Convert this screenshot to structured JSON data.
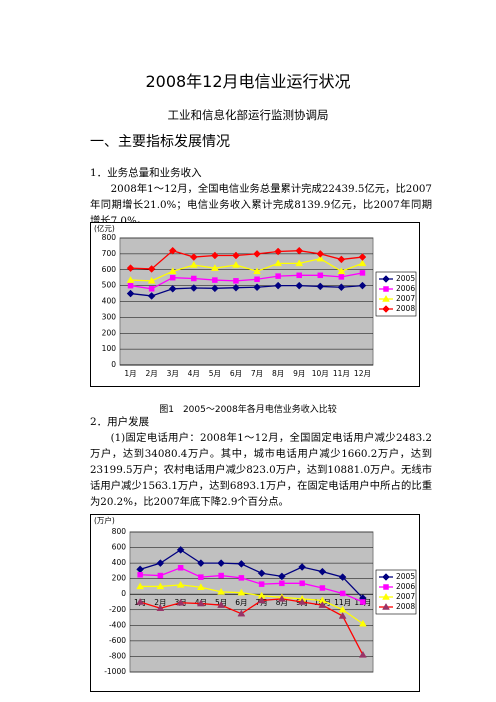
{
  "document": {
    "title": "2008年12月电信业运行状况",
    "subtitle": "工业和信息化部运行监测协调局",
    "heading": "一、主要指标发展情况",
    "section1": "1．业务总量和业务收入",
    "paragraph1": "2008年1～12月，全国电信业务总量累计完成22439.5亿元，比2007年同期增长21.0%；电信业务收入累计完成8139.9亿元，比2007年同期增长7.0%。",
    "caption1": "图1　2005～2008年各月电信业务收入比较",
    "section2": "2．用户发展",
    "paragraph2": "(1)固定电话用户：2008年1～12月，全国固定电话用户减少2483.2万户，达到34080.4万户。其中，城市电话用户减少1660.2万户，达到23199.5万户；农村电话用户减少823.0万户，达到10881.0万户。无线市话用户减少1563.1万户，达到6893.1万户，在固定电话用户中所占的比重为20.2%，比2007年底下降2.9个百分点。"
  },
  "chart_data": [
    {
      "type": "line",
      "unit": "(亿元)",
      "categories": [
        "1月",
        "2月",
        "3月",
        "4月",
        "5月",
        "6月",
        "7月",
        "8月",
        "9月",
        "10月",
        "11月",
        "12月"
      ],
      "ylim": [
        0,
        800
      ],
      "yticks": [
        0,
        100,
        200,
        300,
        400,
        500,
        600,
        700,
        800
      ],
      "grid": true,
      "legend": "right",
      "series": [
        {
          "name": "2005",
          "color": "#000080",
          "marker": "diamond",
          "values": [
            450,
            435,
            480,
            485,
            483,
            487,
            490,
            500,
            500,
            495,
            490,
            500
          ]
        },
        {
          "name": "2006",
          "color": "#ff00ff",
          "marker": "square",
          "values": [
            500,
            480,
            550,
            545,
            535,
            530,
            540,
            560,
            565,
            565,
            555,
            580
          ]
        },
        {
          "name": "2007",
          "color": "#ffff00",
          "marker": "triangle",
          "values": [
            535,
            530,
            590,
            630,
            610,
            630,
            590,
            640,
            640,
            670,
            590,
            640
          ]
        },
        {
          "name": "2008",
          "color": "#ff0000",
          "marker": "diamond",
          "values": [
            610,
            605,
            720,
            680,
            690,
            690,
            700,
            715,
            720,
            700,
            665,
            680
          ]
        }
      ]
    },
    {
      "type": "line",
      "unit": "(万户)",
      "categories": [
        "1月",
        "2月",
        "3月",
        "4月",
        "5月",
        "6月",
        "7月",
        "8月",
        "9月",
        "10月",
        "11月",
        "12月"
      ],
      "ylim": [
        -1000,
        800
      ],
      "yticks": [
        -1000,
        -800,
        -600,
        -400,
        -200,
        0,
        200,
        400,
        600,
        800
      ],
      "grid": true,
      "legend": "right",
      "series": [
        {
          "name": "2005",
          "color": "#000080",
          "marker": "diamond",
          "values": [
            320,
            400,
            570,
            400,
            400,
            390,
            270,
            230,
            350,
            290,
            220,
            -50
          ]
        },
        {
          "name": "2006",
          "color": "#ff00ff",
          "marker": "square",
          "values": [
            250,
            240,
            340,
            220,
            240,
            210,
            130,
            140,
            140,
            80,
            10,
            -100
          ]
        },
        {
          "name": "2007",
          "color": "#ffff00",
          "marker": "triangle",
          "values": [
            100,
            100,
            120,
            90,
            30,
            20,
            -20,
            -40,
            -60,
            -80,
            -200,
            -380
          ]
        },
        {
          "name": "2008",
          "color": "#ff0000",
          "marker": "triangle",
          "marker_color": "#993366",
          "values": [
            -100,
            -180,
            -110,
            -120,
            -140,
            -250,
            -80,
            -60,
            -100,
            -140,
            -280,
            -780
          ]
        }
      ]
    }
  ]
}
